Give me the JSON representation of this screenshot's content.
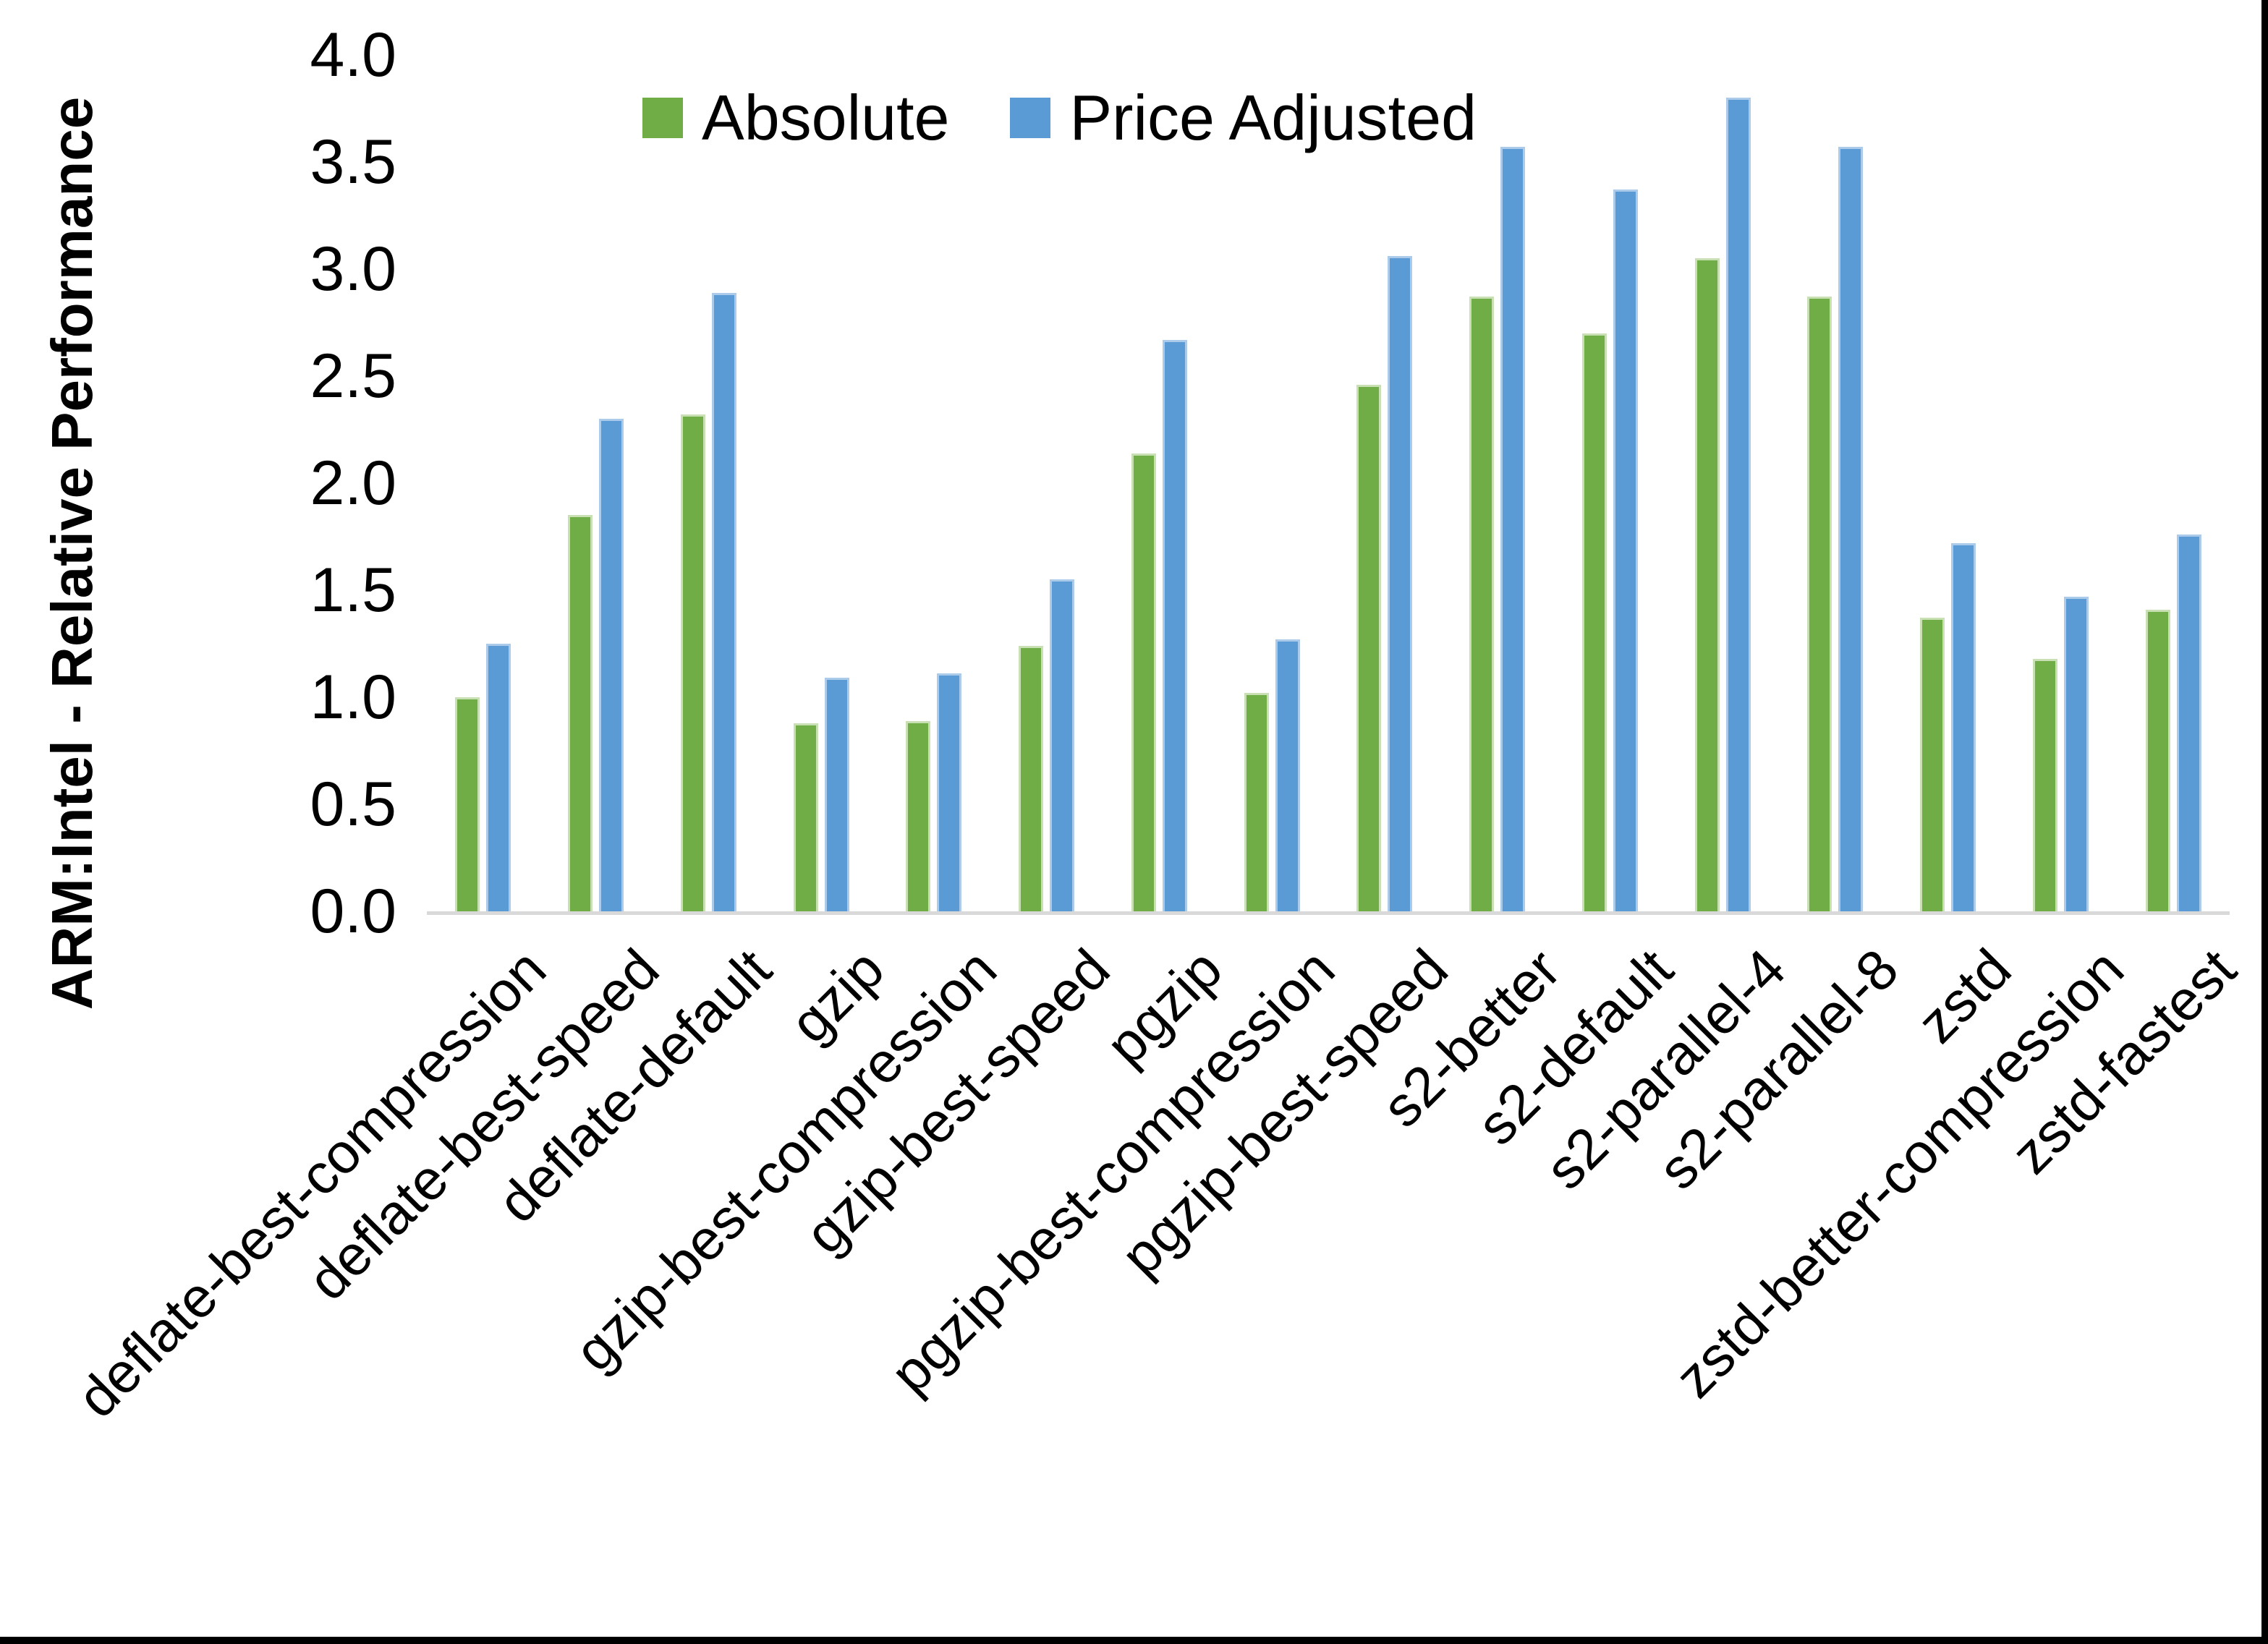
{
  "chart_data": {
    "type": "bar",
    "title": "",
    "xlabel": "",
    "ylabel": "ARM:Intel - Relative Performance",
    "ylim": [
      0.0,
      4.0
    ],
    "ytick_step": 0.5,
    "ytick_labels": [
      "0.0",
      "0.5",
      "1.0",
      "1.5",
      "2.0",
      "2.5",
      "3.0",
      "3.5",
      "4.0"
    ],
    "grid": false,
    "legend_position": "top-center-inside",
    "x_label_rotation_deg": 45,
    "categories": [
      "deflate-best-compression",
      "deflate-best-speed",
      "deflate-default",
      "gzip",
      "gzip-best-compression",
      "gzip-best-speed",
      "pgzip",
      "pgzip-best-compression",
      "pgzip-best-speed",
      "s2-better",
      "s2-default",
      "s2-parallel-4",
      "s2-parallel-8",
      "zstd",
      "zstd-better-compression",
      "zstd-fastest"
    ],
    "series": [
      {
        "name": "Absolute",
        "color": "#70AD47",
        "border_color": "#C9DFB4",
        "values": [
          1.0,
          1.85,
          2.32,
          0.88,
          0.89,
          1.24,
          2.14,
          1.02,
          2.46,
          2.87,
          2.7,
          3.05,
          2.87,
          1.37,
          1.18,
          1.41
        ]
      },
      {
        "name": "Price Adjusted",
        "color": "#5B9BD5",
        "border_color": "#ACCBEA",
        "values": [
          1.25,
          2.3,
          2.89,
          1.09,
          1.11,
          1.55,
          2.67,
          1.27,
          3.06,
          3.57,
          3.37,
          3.8,
          3.57,
          1.72,
          1.47,
          1.76
        ]
      }
    ],
    "axis_line_color": "#D9D9D9",
    "text_color": "#000000",
    "background_color": "#FFFFFF",
    "frame_edge_color": "#000000"
  }
}
